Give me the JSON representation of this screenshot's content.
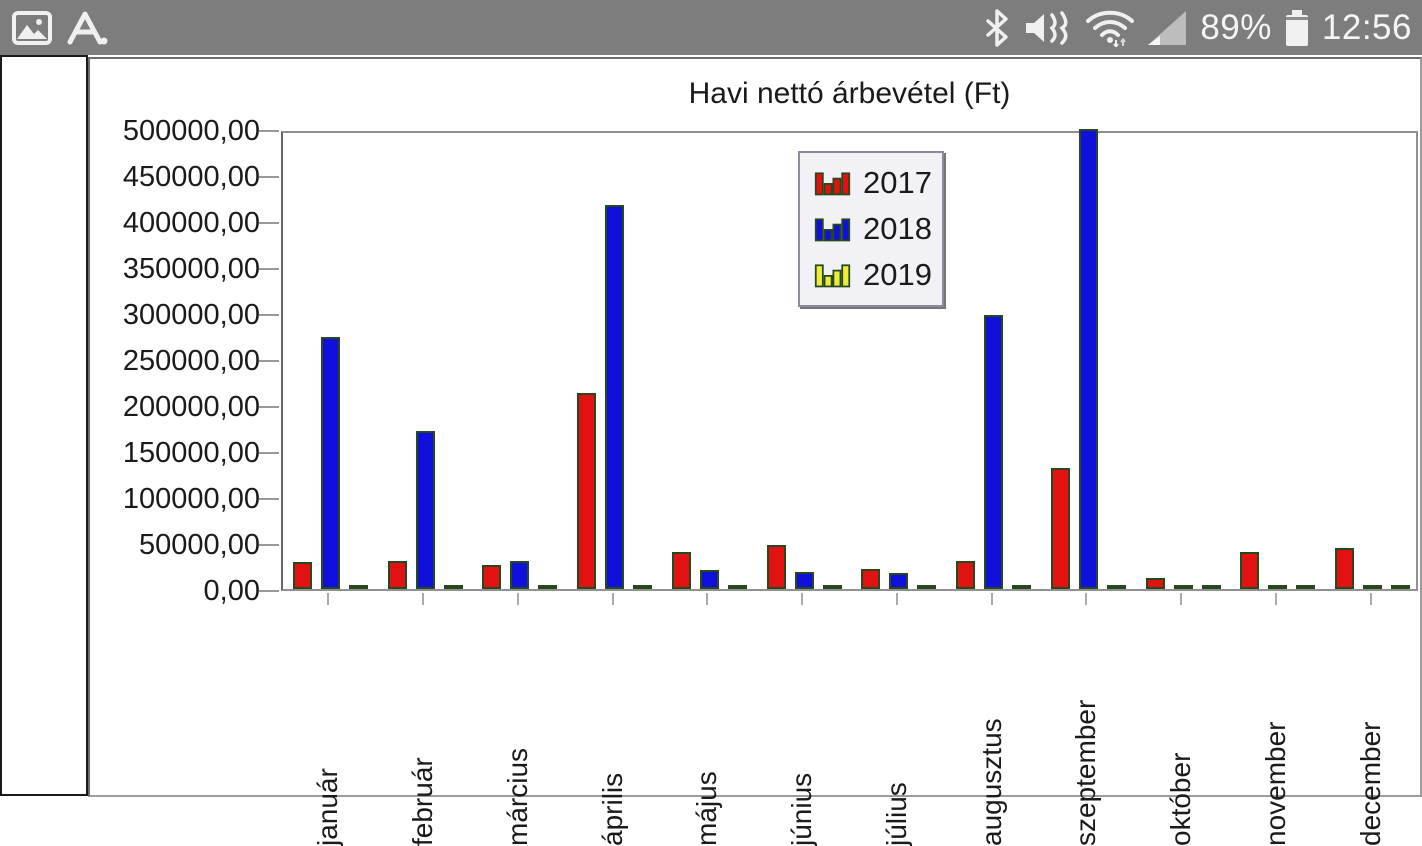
{
  "status_bar": {
    "battery_percent": "89%",
    "time": "12:56",
    "left_icons": [
      "gallery-icon",
      "letter-a-icon"
    ],
    "right_icons": [
      "bluetooth-icon",
      "mute-vibrate-icon",
      "wifi-icon",
      "signal-strength-icon",
      "battery-icon"
    ]
  },
  "chart_data": {
    "type": "bar",
    "title": "Havi nettó árbevétel (Ft)",
    "categories": [
      "január",
      "február",
      "március",
      "április",
      "május",
      "június",
      "július",
      "augusztus",
      "szeptember",
      "október",
      "november",
      "december"
    ],
    "series": [
      {
        "name": "2017",
        "color": "#e31212",
        "values": [
          29000,
          30000,
          26000,
          213000,
          40000,
          48000,
          22000,
          30000,
          131000,
          12000,
          40000,
          45000
        ]
      },
      {
        "name": "2018",
        "color": "#1010dd",
        "values": [
          274000,
          172000,
          30000,
          417000,
          21000,
          18000,
          17000,
          298000,
          500000,
          3000,
          2000,
          2000
        ]
      },
      {
        "name": "2019",
        "color": "#ecec3a",
        "values": [
          2000,
          2000,
          2000,
          2000,
          2000,
          2000,
          2000,
          2000,
          2000,
          2000,
          2000,
          2000
        ]
      }
    ],
    "bar_border_color": "#27481a",
    "ylim": [
      0,
      500000
    ],
    "ytick_step": 50000,
    "ytick_labels_top_to_bottom": [
      "500000,00",
      "450000,00",
      "400000,00",
      "350000,00",
      "300000,00",
      "250000,00",
      "200000,00",
      "150000,00",
      "100000,00",
      "50000,00",
      "0,00"
    ],
    "xlabel": "",
    "ylabel": "",
    "grid": false,
    "legend_position": "upper-middle",
    "legend_entries": [
      "2017",
      "2018",
      "2019"
    ]
  }
}
